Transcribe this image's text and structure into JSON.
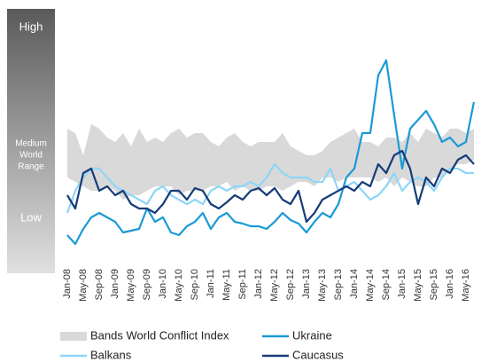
{
  "chart_data": {
    "type": "line",
    "range_labels": {
      "high": "High",
      "medium": [
        "Medium",
        "World",
        "Range"
      ],
      "low": "Low"
    },
    "categories": [
      "Jan-08",
      null,
      "May-08",
      null,
      "Sep-08",
      null,
      "Jan-09",
      null,
      "May-09",
      null,
      "Sep-09",
      null,
      "Jan-10",
      null,
      "May-10",
      null,
      "Sep-10",
      null,
      "Jan-11",
      null,
      "May-11",
      null,
      "Sep-11",
      null,
      "Jan-12",
      null,
      "May-12",
      null,
      "Sep-12",
      null,
      "Jan-13",
      null,
      "May-13",
      null,
      "Sep-13",
      null,
      "Jan-14",
      null,
      "May-14",
      null,
      "Sep-14",
      null,
      "Jan-15",
      null,
      "May-15",
      null,
      "Sep-15",
      null,
      "Jan-16",
      null,
      "May-16",
      null
    ],
    "ylim": [
      0,
      290
    ],
    "band": {
      "name": "Bands World Conflict Index",
      "color": "#d9d9d9",
      "high": [
        155,
        150,
        125,
        160,
        155,
        145,
        140,
        150,
        135,
        155,
        140,
        145,
        140,
        150,
        155,
        145,
        150,
        150,
        140,
        135,
        145,
        150,
        140,
        135,
        140,
        140,
        140,
        150,
        135,
        130,
        125,
        125,
        130,
        140,
        145,
        150,
        155,
        140,
        140,
        135,
        145,
        145,
        140,
        150,
        140,
        155,
        150,
        145,
        155,
        155,
        150,
        155
      ],
      "low": [
        100,
        95,
        90,
        85,
        85,
        90,
        85,
        75,
        80,
        80,
        85,
        90,
        90,
        90,
        80,
        85,
        85,
        85,
        90,
        90,
        95,
        85,
        90,
        85,
        85,
        90,
        90,
        85,
        90,
        95,
        95,
        90,
        100,
        100,
        95,
        100,
        100,
        100,
        100,
        95,
        100,
        90,
        100,
        95,
        90,
        90,
        100,
        100,
        110,
        115,
        115,
        120
      ]
    },
    "series": [
      {
        "name": "Ukraine",
        "color": "#1a9ad6",
        "values": [
          35,
          25,
          42,
          55,
          60,
          55,
          50,
          38,
          40,
          42,
          65,
          50,
          55,
          38,
          35,
          45,
          50,
          60,
          42,
          55,
          60,
          50,
          48,
          45,
          45,
          42,
          50,
          60,
          52,
          48,
          38,
          50,
          60,
          55,
          70,
          100,
          110,
          150,
          150,
          215,
          232,
          170,
          110,
          155,
          165,
          175,
          160,
          140,
          145,
          135,
          140,
          185
        ]
      },
      {
        "name": "Balkans",
        "color": "#8ed6f7",
        "values": [
          60,
          85,
          100,
          110,
          110,
          100,
          90,
          85,
          80,
          75,
          70,
          85,
          90,
          80,
          75,
          70,
          75,
          70,
          85,
          90,
          85,
          90,
          90,
          95,
          90,
          100,
          115,
          105,
          100,
          100,
          100,
          95,
          95,
          110,
          85,
          90,
          95,
          85,
          75,
          80,
          90,
          105,
          85,
          95,
          100,
          95,
          85,
          100,
          110,
          110,
          105,
          105
        ]
      },
      {
        "name": "Caucasus",
        "color": "#173c78",
        "values": [
          80,
          65,
          105,
          110,
          85,
          90,
          80,
          85,
          70,
          65,
          65,
          60,
          70,
          85,
          85,
          75,
          88,
          85,
          70,
          65,
          72,
          80,
          75,
          85,
          88,
          80,
          88,
          75,
          70,
          85,
          50,
          60,
          75,
          80,
          85,
          90,
          85,
          95,
          90,
          115,
          105,
          125,
          130,
          110,
          70,
          100,
          90,
          110,
          105,
          120,
          125,
          115
        ]
      }
    ],
    "legend": "bottom"
  }
}
